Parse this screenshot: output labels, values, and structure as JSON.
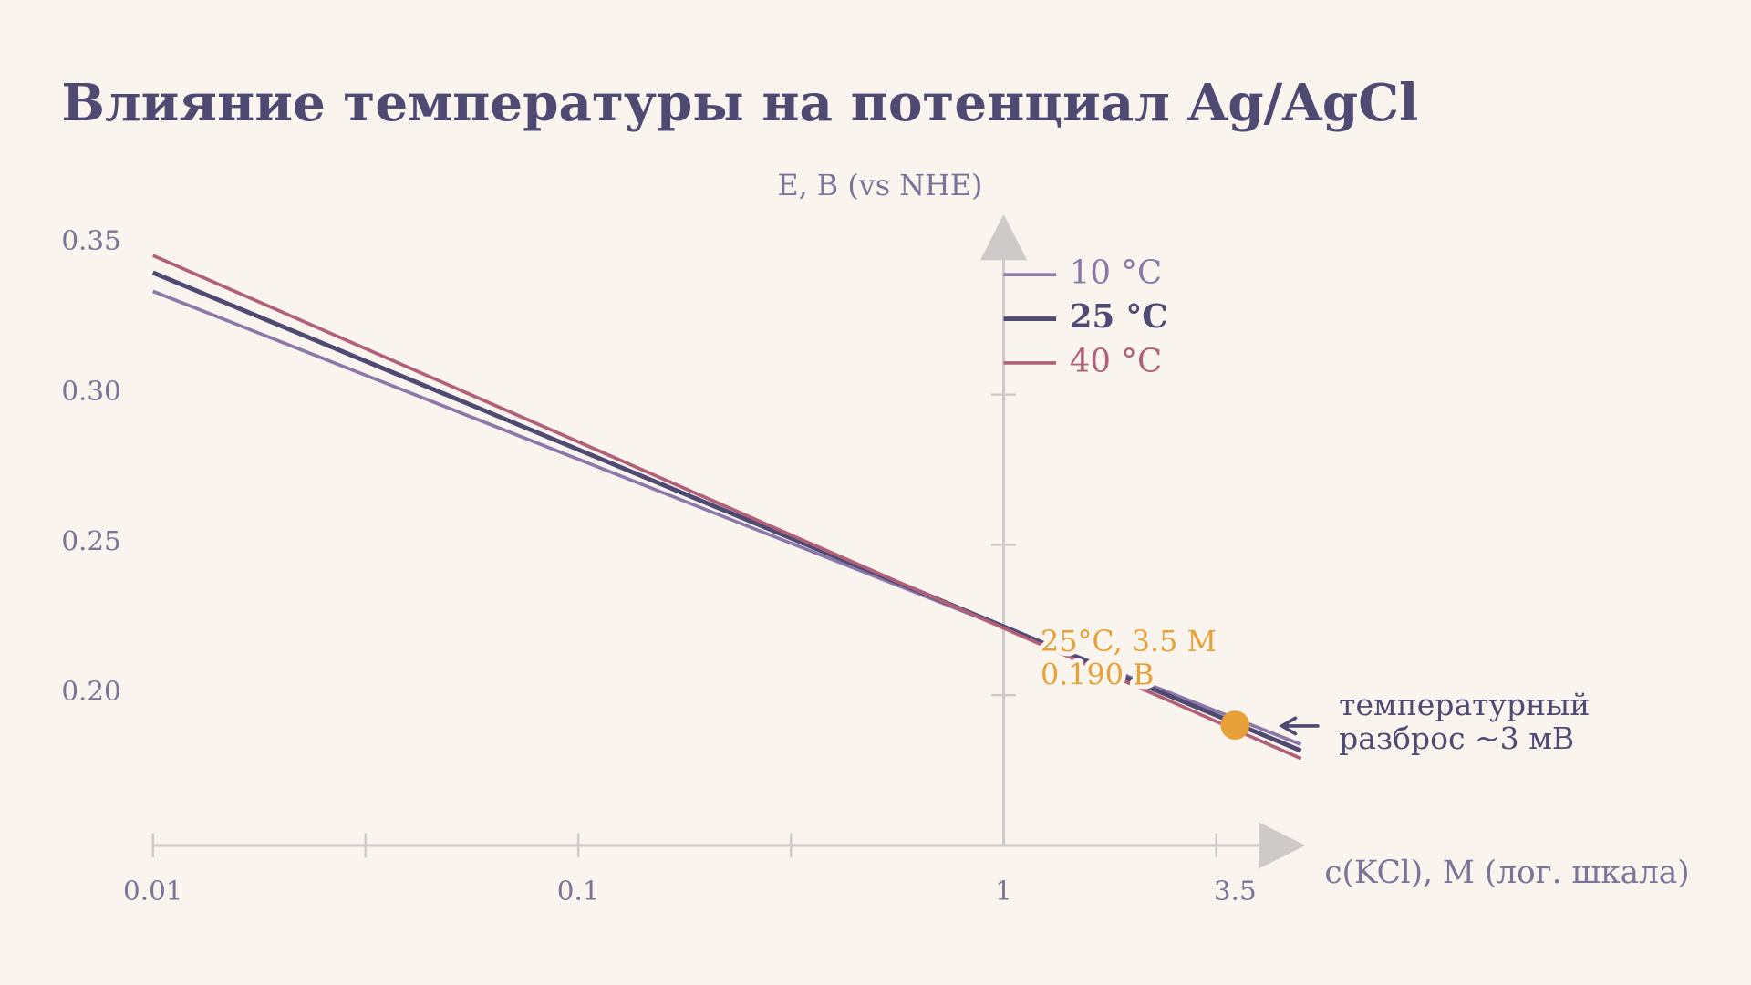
{
  "chart_data": {
    "type": "line",
    "title": "Влияние температуры на потенциал Ag/AgCl",
    "y_label": "E, В (vs NHE)",
    "x_label": "c(KCl), M (лог. шкала)",
    "x_scale": "log",
    "x": [
      0.01,
      0.1,
      1,
      5
    ],
    "xlim": [
      0.01,
      5
    ],
    "xticks": [
      0.01,
      0.1,
      1,
      3.5
    ],
    "x_minor_ticks": [
      0.0316,
      0.316,
      3.16
    ],
    "ylim": [
      0.15,
      0.357
    ],
    "yticks": [
      {
        "value": 0.35,
        "label": "0.35"
      },
      {
        "value": 0.3,
        "label": "0.30"
      },
      {
        "value": 0.25,
        "label": "0.25"
      },
      {
        "value": 0.2,
        "label": "0.20"
      }
    ],
    "y_axis_at": 1,
    "series": [
      {
        "name": "10 °C",
        "color": "#8b78a8",
        "values": [
          0.3344,
          0.2785,
          0.2226,
          0.1836
        ]
      },
      {
        "name": "25 °C",
        "color": "#4e4a72",
        "values": [
          0.3406,
          0.2817,
          0.2228,
          0.1815
        ]
      },
      {
        "name": "40 °C",
        "color": "#b06078",
        "values": [
          0.3463,
          0.2843,
          0.2223,
          0.1789
        ]
      }
    ],
    "highlight": {
      "x": 3.5,
      "y": 0.19,
      "color": "#e8a038",
      "label": [
        "25°C, 3.5 M",
        "0.190 В"
      ]
    },
    "note": [
      "температурный",
      "разброс ~3 мВ"
    ]
  }
}
